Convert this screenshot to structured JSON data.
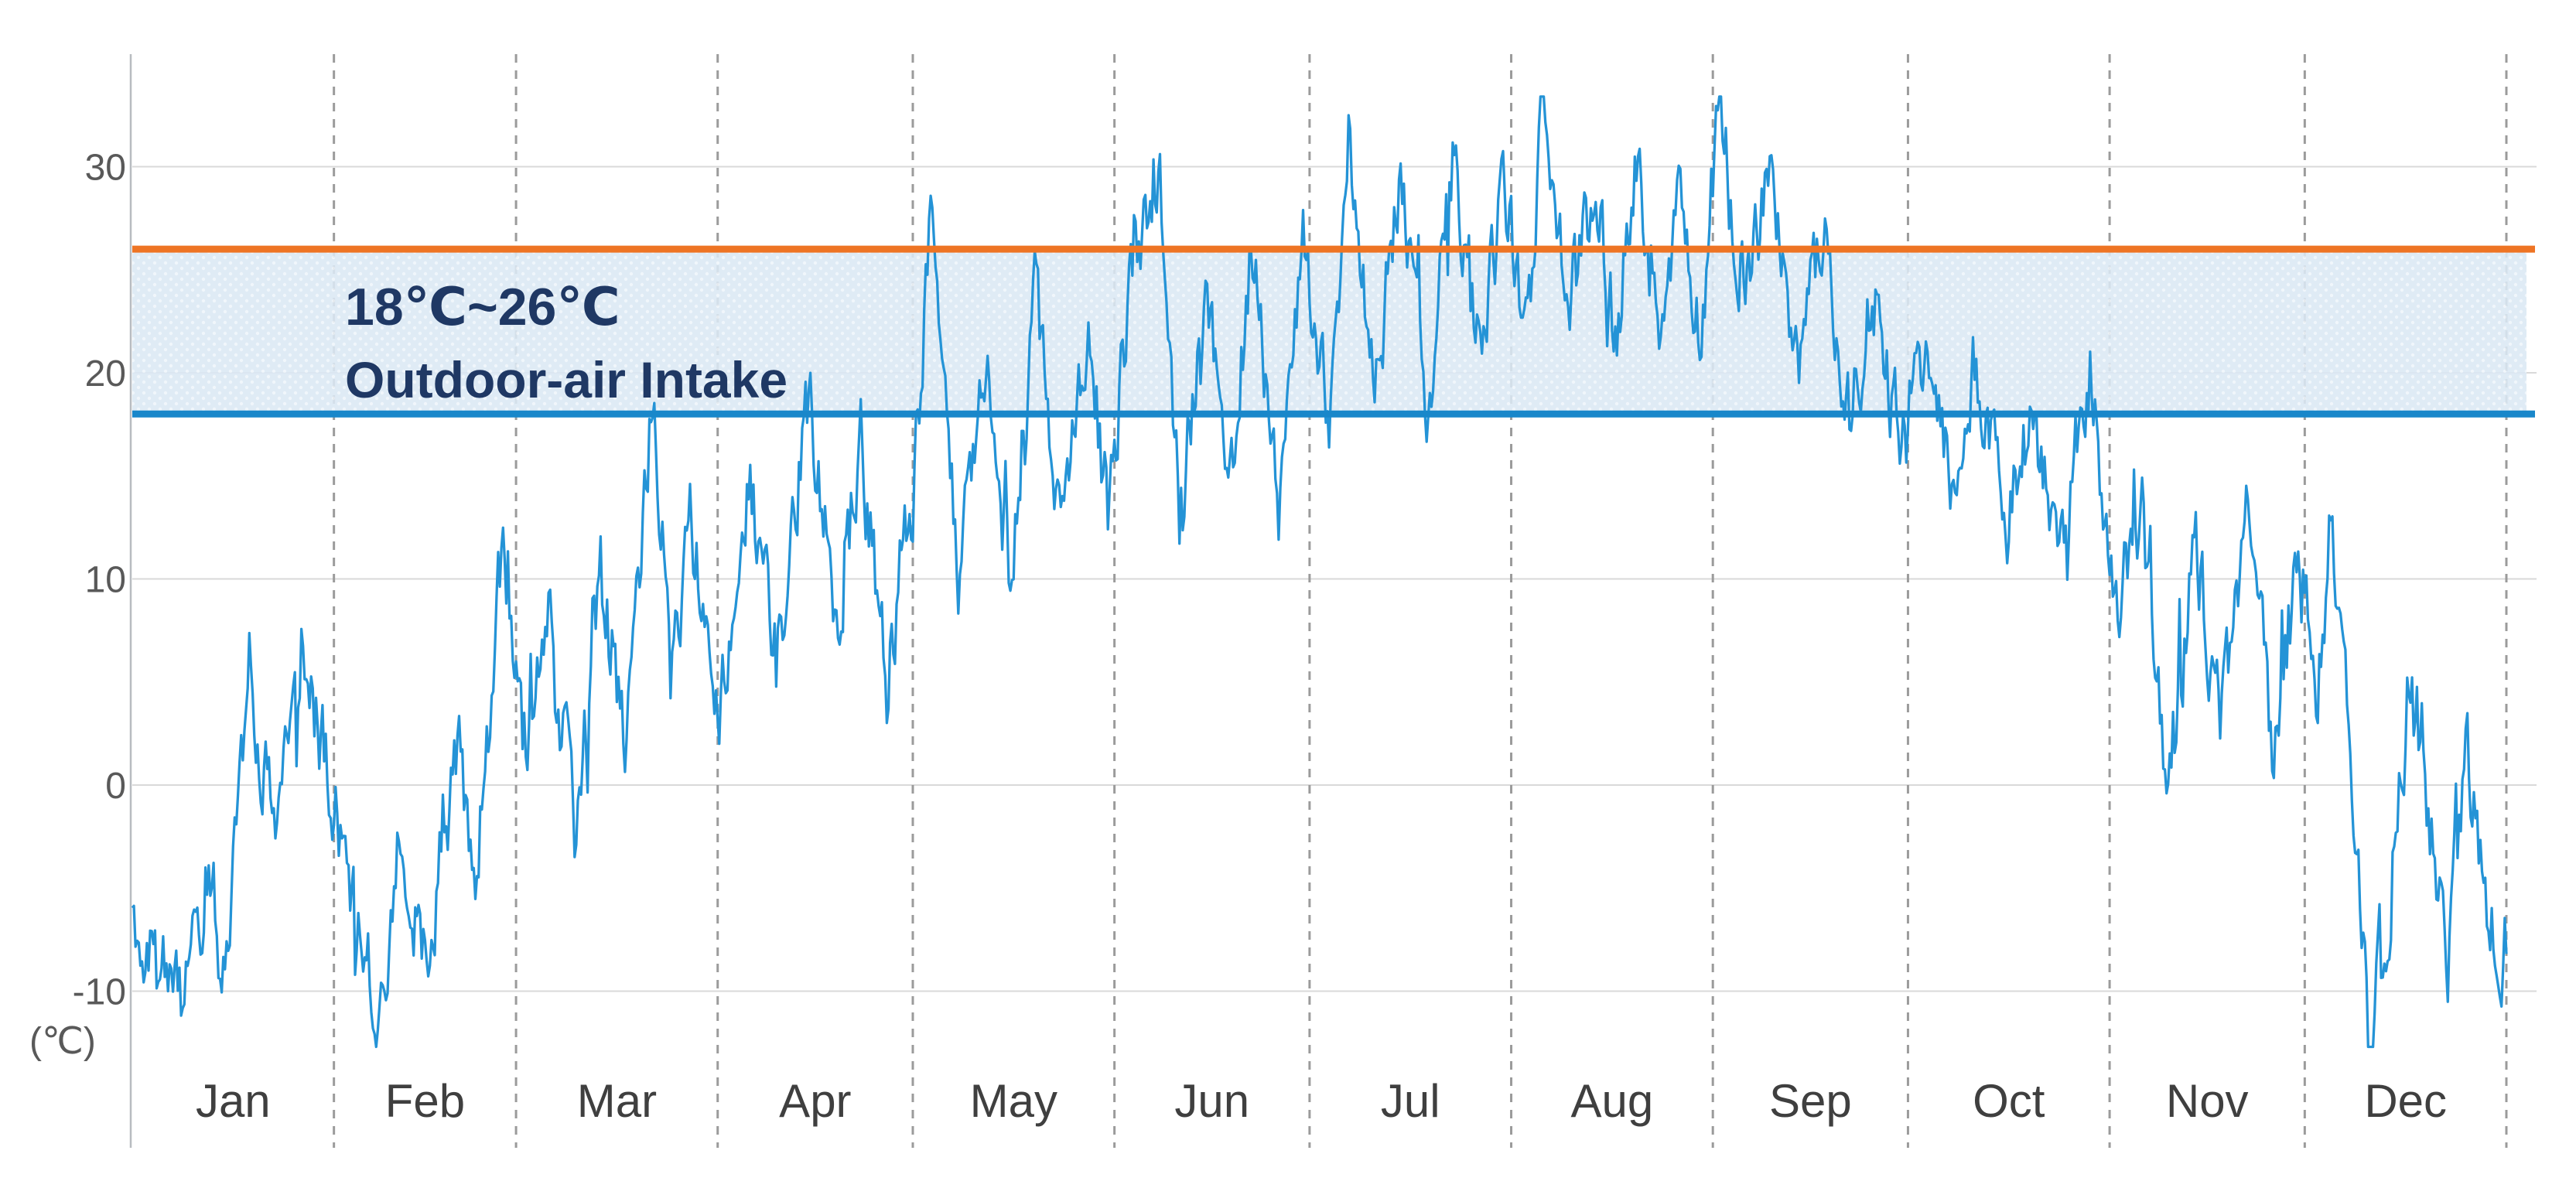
{
  "y_axis": {
    "unit_label": "(℃)",
    "ticks": [
      30,
      20,
      10,
      0,
      -10
    ],
    "ylim": [
      -15,
      35
    ]
  },
  "x_axis": {
    "months": [
      "Jan",
      "Feb",
      "Mar",
      "Apr",
      "May",
      "Jun",
      "Jul",
      "Aug",
      "Sep",
      "Oct",
      "Nov",
      "Dec"
    ],
    "month_days": [
      31,
      28,
      31,
      30,
      31,
      30,
      31,
      31,
      30,
      31,
      30,
      31
    ]
  },
  "band": {
    "low_c": 18,
    "high_c": 26,
    "label_line1": "18℃~26℃",
    "label_line2": "Outdoor-air Intake"
  },
  "colors": {
    "band_fill": "#dbe8f4",
    "band_dot": "#eef5fb",
    "band_top_line": "#ee7424",
    "band_bottom_line": "#1987ca",
    "series_line": "#2493d6",
    "gridline": "#d9d9d9",
    "month_dash": "#9b9b9b",
    "axis_line": "#b8bcc0",
    "tick_text": "#595959",
    "month_text": "#3f3f3f",
    "annotation_text": "#1f3864"
  },
  "chart_data": {
    "type": "line",
    "title": "",
    "xlabel": "",
    "ylabel": "(℃)",
    "legend": "none",
    "grid": "horizontal solid, vertical dashed month separators",
    "x_categories": [
      "Jan",
      "Feb",
      "Mar",
      "Apr",
      "May",
      "Jun",
      "Jul",
      "Aug",
      "Sep",
      "Oct",
      "Nov",
      "Dec"
    ],
    "ylim": [
      -15,
      35
    ],
    "band": {
      "low": 18,
      "high": 26,
      "label": "18℃~26℃ Outdoor-air Intake"
    },
    "series": [
      {
        "name": "outdoor-air temperature",
        "unit": "°C",
        "x_unit": "day-of-year",
        "points": [
          [
            0,
            -6
          ],
          [
            3,
            -8.7
          ],
          [
            8,
            -10.8
          ],
          [
            12,
            -4
          ],
          [
            14,
            -9.5
          ],
          [
            18,
            5.5
          ],
          [
            22,
            -3
          ],
          [
            26,
            6
          ],
          [
            31,
            0
          ],
          [
            34,
            -6
          ],
          [
            38,
            -11
          ],
          [
            41,
            -3
          ],
          [
            45,
            -8.8
          ],
          [
            50,
            2
          ],
          [
            53,
            -4
          ],
          [
            57,
            12
          ],
          [
            60,
            1
          ],
          [
            64,
            8
          ],
          [
            68,
            -2
          ],
          [
            72,
            10
          ],
          [
            76,
            2
          ],
          [
            80,
            18.6
          ],
          [
            83,
            6
          ],
          [
            86,
            13
          ],
          [
            90,
            3
          ],
          [
            95,
            15
          ],
          [
            99,
            6
          ],
          [
            104,
            19.2
          ],
          [
            108,
            8
          ],
          [
            112,
            16
          ],
          [
            116,
            5
          ],
          [
            120,
            14
          ],
          [
            123,
            28.3
          ],
          [
            127,
            9
          ],
          [
            131,
            21
          ],
          [
            135,
            10
          ],
          [
            139,
            24
          ],
          [
            143,
            12
          ],
          [
            147,
            22
          ],
          [
            150,
            13
          ],
          [
            154,
            26.5
          ],
          [
            158,
            28.2
          ],
          [
            161,
            13
          ],
          [
            165,
            24
          ],
          [
            169,
            15
          ],
          [
            172,
            26
          ],
          [
            176,
            14
          ],
          [
            180,
            26.8
          ],
          [
            184,
            17
          ],
          [
            187,
            31.5
          ],
          [
            191,
            20
          ],
          [
            195,
            29
          ],
          [
            199,
            18
          ],
          [
            203,
            30.2
          ],
          [
            207,
            21
          ],
          [
            211,
            29
          ],
          [
            214,
            22
          ],
          [
            217,
            33.3
          ],
          [
            221,
            23
          ],
          [
            225,
            30
          ],
          [
            228,
            21.5
          ],
          [
            231,
            30.6
          ],
          [
            235,
            23
          ],
          [
            238,
            29
          ],
          [
            241,
            22
          ],
          [
            244,
            32.6
          ],
          [
            248,
            24
          ],
          [
            252,
            29.5
          ],
          [
            256,
            20
          ],
          [
            260,
            27
          ],
          [
            264,
            17.5
          ],
          [
            268,
            24
          ],
          [
            272,
            16
          ],
          [
            276,
            22
          ],
          [
            280,
            14
          ],
          [
            284,
            20
          ],
          [
            288,
            12
          ],
          [
            292,
            18.5
          ],
          [
            296,
            10
          ],
          [
            301,
            20.3
          ],
          [
            305,
            8
          ],
          [
            309,
            14
          ],
          [
            313,
            -2
          ],
          [
            317,
            12
          ],
          [
            321,
            3
          ],
          [
            325,
            13
          ],
          [
            329,
            2
          ],
          [
            333,
            11
          ],
          [
            336,
            4
          ],
          [
            338,
            13
          ],
          [
            341,
            3
          ],
          [
            344,
            -12.6
          ],
          [
            347,
            -6
          ],
          [
            350,
            5
          ],
          [
            353,
            -2
          ],
          [
            356,
            -8.5
          ],
          [
            359,
            2
          ],
          [
            362,
            -5
          ],
          [
            364,
            -7.5
          ]
        ]
      }
    ]
  },
  "render": {
    "seed": 11,
    "samples": 1460,
    "noise_amp": 2.2,
    "persistence": 0.5,
    "clamp": [
      -12.7,
      33.4
    ]
  }
}
